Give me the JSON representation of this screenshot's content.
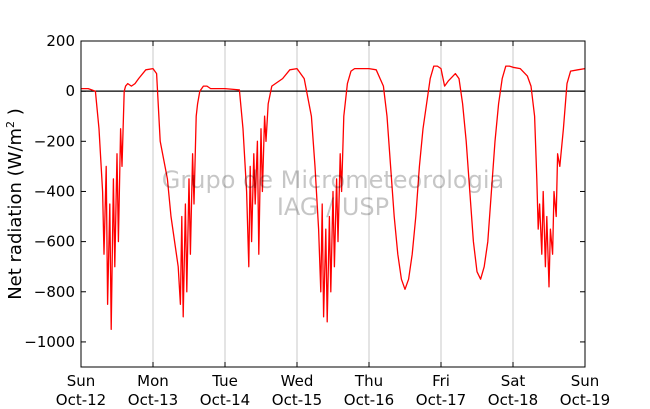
{
  "chart_data": {
    "type": "line",
    "title": "",
    "xlabel": "",
    "ylabel": "Net radiation (W/m",
    "ylabel_sup": "2",
    "ylabel_end": " )",
    "ylim": [
      -1100,
      200
    ],
    "xlim": [
      0,
      7
    ],
    "yticks": [
      200,
      0,
      -200,
      -400,
      -600,
      -800,
      -1000
    ],
    "ytick_labels": [
      "200",
      "0",
      "−200",
      "−400",
      "−600",
      "−800",
      "−1000"
    ],
    "xticks": [
      {
        "pos": 0,
        "day": "Sun",
        "date": "Oct-12"
      },
      {
        "pos": 1,
        "day": "Mon",
        "date": "Oct-13"
      },
      {
        "pos": 2,
        "day": "Tue",
        "date": "Oct-14"
      },
      {
        "pos": 3,
        "day": "Wed",
        "date": "Oct-15"
      },
      {
        "pos": 4,
        "day": "Thu",
        "date": "Oct-16"
      },
      {
        "pos": 5,
        "day": "Fri",
        "date": "Oct-17"
      },
      {
        "pos": 6,
        "day": "Sat",
        "date": "Oct-18"
      },
      {
        "pos": 7,
        "day": "Sun",
        "date": "Oct-19"
      }
    ],
    "grid": "vertical",
    "zero_line": true,
    "series": [
      {
        "color": "#ff0000",
        "x": [
          0,
          0.1,
          0.2,
          0.25,
          0.3,
          0.32,
          0.35,
          0.37,
          0.4,
          0.42,
          0.45,
          0.47,
          0.5,
          0.52,
          0.55,
          0.57,
          0.6,
          0.62,
          0.65,
          0.7,
          0.75,
          0.8,
          0.9,
          1,
          1.05,
          1.1,
          1.2,
          1.25,
          1.35,
          1.38,
          1.4,
          1.42,
          1.45,
          1.47,
          1.5,
          1.52,
          1.55,
          1.57,
          1.6,
          1.62,
          1.65,
          1.7,
          1.75,
          1.8,
          2,
          2.2,
          2.25,
          2.3,
          2.33,
          2.35,
          2.37,
          2.4,
          2.42,
          2.45,
          2.47,
          2.5,
          2.52,
          2.55,
          2.57,
          2.6,
          2.65,
          2.7,
          2.8,
          2.9,
          3,
          3.1,
          3.2,
          3.25,
          3.3,
          3.33,
          3.35,
          3.37,
          3.4,
          3.42,
          3.45,
          3.47,
          3.5,
          3.52,
          3.55,
          3.57,
          3.6,
          3.62,
          3.65,
          3.7,
          3.75,
          3.8,
          3.9,
          4,
          4.1,
          4.2,
          4.25,
          4.3,
          4.35,
          4.4,
          4.45,
          4.5,
          4.55,
          4.6,
          4.65,
          4.7,
          4.75,
          4.8,
          4.85,
          4.9,
          4.95,
          5,
          5.05,
          5.1,
          5.2,
          5.25,
          5.3,
          5.35,
          5.4,
          5.45,
          5.5,
          5.55,
          5.6,
          5.65,
          5.7,
          5.75,
          5.8,
          5.85,
          5.9,
          5.95,
          6,
          6.1,
          6.2,
          6.25,
          6.3,
          6.33,
          6.35,
          6.37,
          6.4,
          6.42,
          6.45,
          6.47,
          6.5,
          6.52,
          6.55,
          6.57,
          6.6,
          6.62,
          6.65,
          6.7,
          6.75,
          6.8,
          6.9,
          7
        ],
        "y": [
          10,
          10,
          0,
          -150,
          -400,
          -650,
          -300,
          -850,
          -450,
          -950,
          -350,
          -700,
          -250,
          -600,
          -150,
          -300,
          0,
          20,
          30,
          20,
          30,
          50,
          85,
          90,
          70,
          -200,
          -350,
          -500,
          -700,
          -850,
          -500,
          -900,
          -450,
          -800,
          -350,
          -650,
          -250,
          -450,
          -100,
          -50,
          0,
          20,
          20,
          10,
          10,
          5,
          -150,
          -400,
          -700,
          -300,
          -600,
          -250,
          -450,
          -200,
          -650,
          -150,
          -400,
          -100,
          -200,
          -50,
          20,
          30,
          50,
          85,
          90,
          50,
          -100,
          -300,
          -550,
          -800,
          -450,
          -900,
          -550,
          -920,
          -500,
          -800,
          -400,
          -700,
          -350,
          -600,
          -250,
          -400,
          -100,
          30,
          80,
          90,
          90,
          90,
          85,
          20,
          -100,
          -300,
          -500,
          -650,
          -750,
          -790,
          -750,
          -650,
          -500,
          -300,
          -150,
          -50,
          50,
          100,
          100,
          90,
          20,
          40,
          70,
          50,
          -50,
          -200,
          -400,
          -600,
          -720,
          -750,
          -700,
          -600,
          -400,
          -200,
          -50,
          50,
          100,
          100,
          95,
          90,
          60,
          20,
          -100,
          -350,
          -550,
          -450,
          -650,
          -400,
          -700,
          -500,
          -780,
          -550,
          -650,
          -400,
          -500,
          -250,
          -300,
          -150,
          30,
          80,
          85,
          90
        ]
      }
    ]
  },
  "watermark": {
    "line1": "Grupo de Micrometeorologia",
    "line2": "IAG / USP"
  }
}
